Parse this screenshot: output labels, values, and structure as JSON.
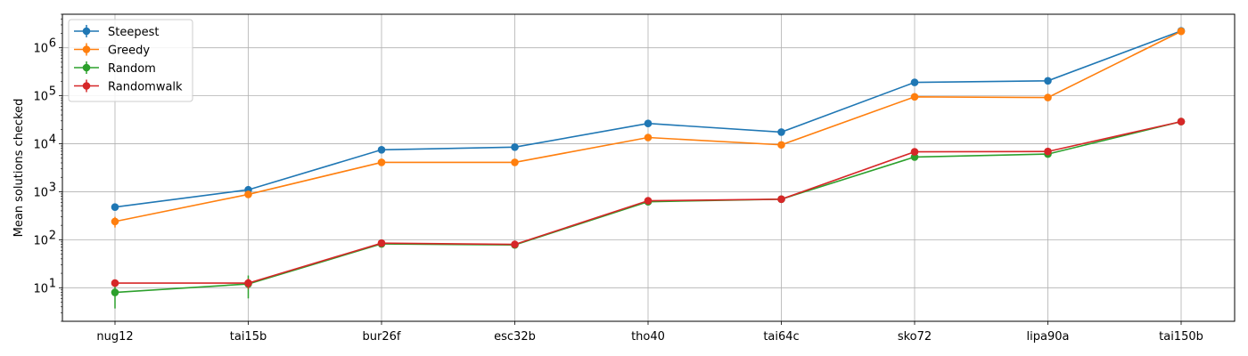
{
  "chart_data": {
    "type": "line",
    "title": "",
    "xlabel": "",
    "ylabel": "Mean solutions checked",
    "yscale": "log",
    "ylim": [
      2,
      5000000
    ],
    "grid": true,
    "legend_position": "top-left",
    "categories": [
      "nug12",
      "tai15b",
      "bur26f",
      "esc32b",
      "tho40",
      "tai64c",
      "sko72",
      "lipa90a",
      "tai150b"
    ],
    "y_tick_values": [
      10,
      100,
      1000,
      10000,
      100000,
      1000000
    ],
    "y_tick_labels": [
      {
        "base": "10",
        "exp": "1"
      },
      {
        "base": "10",
        "exp": "2"
      },
      {
        "base": "10",
        "exp": "3"
      },
      {
        "base": "10",
        "exp": "4"
      },
      {
        "base": "10",
        "exp": "5"
      },
      {
        "base": "10",
        "exp": "6"
      }
    ],
    "series": [
      {
        "name": "Steepest",
        "color": "#1f77b4",
        "values": [
          480,
          1100,
          7500,
          8500,
          26500,
          17500,
          190000,
          205000,
          2250000
        ],
        "errors": [
          60,
          100,
          400,
          400,
          1500,
          1200,
          8000,
          9000,
          50000
        ]
      },
      {
        "name": "Greedy",
        "color": "#ff7f0e",
        "values": [
          240,
          880,
          4100,
          4100,
          13500,
          9500,
          95000,
          92000,
          2200000
        ],
        "errors": [
          60,
          120,
          300,
          300,
          1500,
          1500,
          8000,
          9000,
          60000
        ]
      },
      {
        "name": "Random",
        "color": "#2ca02c",
        "values": [
          8,
          12,
          82,
          78,
          620,
          700,
          5300,
          6100,
          29000
        ],
        "errors": [
          4.3,
          6,
          10,
          8,
          40,
          40,
          300,
          300,
          1500
        ]
      },
      {
        "name": "Randomwalk",
        "color": "#d62728",
        "values": [
          12.5,
          12.5,
          85,
          80,
          650,
          700,
          6800,
          6900,
          29000
        ],
        "errors": [
          1.5,
          3,
          10,
          8,
          40,
          40,
          300,
          300,
          1500
        ]
      }
    ]
  }
}
